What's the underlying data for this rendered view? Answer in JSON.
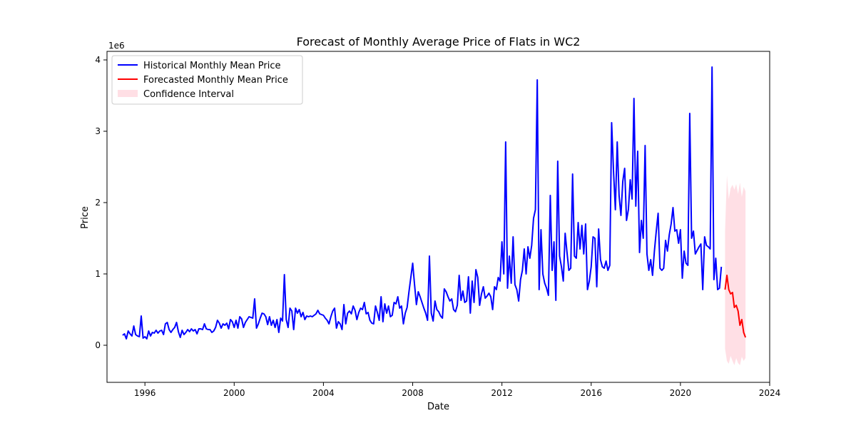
{
  "chart_data": {
    "type": "line",
    "title": "Forecast of Monthly Average Price of Flats in WC2",
    "xlabel": "Date",
    "ylabel": "Price",
    "y_scale_label": "1e6",
    "xlim": [
      1994.3,
      2024.0
    ],
    "ylim": [
      -0.52,
      4.12
    ],
    "y_unit_multiplier": 1000000,
    "x_ticks": [
      1996,
      2000,
      2004,
      2008,
      2012,
      2016,
      2020,
      2024
    ],
    "y_ticks": [
      0,
      1,
      2,
      3,
      4
    ],
    "grid": false,
    "legend_position": "top-left",
    "legend": {
      "historical": "Historical Monthly Mean Price",
      "forecast": "Forecasted Monthly Mean Price",
      "ci": "Confidence Interval"
    },
    "colors": {
      "historical": "#0000ff",
      "forecast": "#ff0000",
      "ci": "#ffc0cb"
    },
    "historical_start": "1995-01",
    "historical_values": [
      0.14,
      0.16,
      0.09,
      0.2,
      0.16,
      0.13,
      0.27,
      0.15,
      0.13,
      0.12,
      0.41,
      0.1,
      0.12,
      0.09,
      0.2,
      0.13,
      0.18,
      0.17,
      0.21,
      0.17,
      0.2,
      0.21,
      0.15,
      0.3,
      0.32,
      0.22,
      0.18,
      0.22,
      0.25,
      0.32,
      0.19,
      0.11,
      0.21,
      0.15,
      0.18,
      0.22,
      0.19,
      0.23,
      0.2,
      0.22,
      0.16,
      0.23,
      0.23,
      0.22,
      0.3,
      0.23,
      0.22,
      0.22,
      0.18,
      0.2,
      0.25,
      0.35,
      0.31,
      0.24,
      0.3,
      0.28,
      0.31,
      0.23,
      0.36,
      0.33,
      0.25,
      0.35,
      0.24,
      0.4,
      0.37,
      0.25,
      0.32,
      0.36,
      0.4,
      0.39,
      0.38,
      0.65,
      0.24,
      0.3,
      0.38,
      0.45,
      0.44,
      0.4,
      0.29,
      0.4,
      0.28,
      0.35,
      0.25,
      0.36,
      0.18,
      0.38,
      0.34,
      0.99,
      0.36,
      0.25,
      0.52,
      0.48,
      0.22,
      0.52,
      0.45,
      0.5,
      0.4,
      0.46,
      0.36,
      0.41,
      0.4,
      0.41,
      0.4,
      0.42,
      0.44,
      0.49,
      0.44,
      0.43,
      0.42,
      0.38,
      0.35,
      0.3,
      0.4,
      0.48,
      0.52,
      0.24,
      0.33,
      0.3,
      0.22,
      0.57,
      0.3,
      0.45,
      0.48,
      0.44,
      0.55,
      0.49,
      0.36,
      0.46,
      0.52,
      0.5,
      0.6,
      0.44,
      0.46,
      0.35,
      0.31,
      0.3,
      0.55,
      0.46,
      0.35,
      0.68,
      0.33,
      0.58,
      0.45,
      0.55,
      0.4,
      0.42,
      0.6,
      0.58,
      0.68,
      0.52,
      0.55,
      0.3,
      0.45,
      0.53,
      0.75,
      0.95,
      1.15,
      0.85,
      0.57,
      0.75,
      0.68,
      0.6,
      0.52,
      0.45,
      0.35,
      1.25,
      0.45,
      0.34,
      0.62,
      0.5,
      0.47,
      0.41,
      0.38,
      0.79,
      0.75,
      0.68,
      0.62,
      0.65,
      0.5,
      0.47,
      0.56,
      0.98,
      0.63,
      0.76,
      0.6,
      0.62,
      0.96,
      0.45,
      0.9,
      0.6,
      1.06,
      0.95,
      0.56,
      0.72,
      0.82,
      0.66,
      0.69,
      0.73,
      0.68,
      0.5,
      0.82,
      0.78,
      0.95,
      0.9,
      1.45,
      1.0,
      2.85,
      0.8,
      1.25,
      0.87,
      1.52,
      0.85,
      0.78,
      0.62,
      0.92,
      1.05,
      1.35,
      1.0,
      1.38,
      1.22,
      1.4,
      1.78,
      1.9,
      3.72,
      0.78,
      1.62,
      1.0,
      0.87,
      0.8,
      0.7,
      2.1,
      1.05,
      1.45,
      0.63,
      2.58,
      1.25,
      1.1,
      0.9,
      1.57,
      1.3,
      1.05,
      1.08,
      2.4,
      1.25,
      1.22,
      1.72,
      1.35,
      1.68,
      1.28,
      1.7,
      0.78,
      0.9,
      1.1,
      1.52,
      1.5,
      0.82,
      1.63,
      1.2,
      1.1,
      1.08,
      1.18,
      1.05,
      1.12,
      3.12,
      2.45,
      1.9,
      2.85,
      2.1,
      1.82,
      2.3,
      2.48,
      1.75,
      1.9,
      2.32,
      2.05,
      3.46,
      1.95,
      2.72,
      1.3,
      1.75,
      1.5,
      2.8,
      1.28,
      1.05,
      1.2,
      0.98,
      1.32,
      1.6,
      1.85,
      1.08,
      1.05,
      1.08,
      1.47,
      1.32,
      1.55,
      1.7,
      1.93,
      1.6,
      1.62,
      1.43,
      1.62,
      0.94,
      1.32,
      1.15,
      1.12,
      3.25,
      1.5,
      1.6,
      1.28,
      1.33,
      1.38,
      1.42,
      0.78,
      1.52,
      1.4,
      1.38,
      1.35,
      3.9,
      0.92,
      1.22,
      0.78,
      0.8,
      1.1
    ],
    "forecast_start": "2022-01",
    "forecast_values": [
      0.78,
      0.98,
      0.78,
      0.72,
      0.74,
      0.53,
      0.56,
      0.48,
      0.28,
      0.36,
      0.18,
      0.11
    ],
    "ci_lower": [
      -0.05,
      -0.22,
      -0.26,
      -0.15,
      -0.22,
      -0.28,
      -0.18,
      -0.25,
      -0.28,
      -0.16,
      -0.22,
      -0.18
    ],
    "ci_upper": [
      1.6,
      2.38,
      2.05,
      2.2,
      2.25,
      2.18,
      2.26,
      2.12,
      2.28,
      2.08,
      2.22,
      2.16
    ]
  }
}
